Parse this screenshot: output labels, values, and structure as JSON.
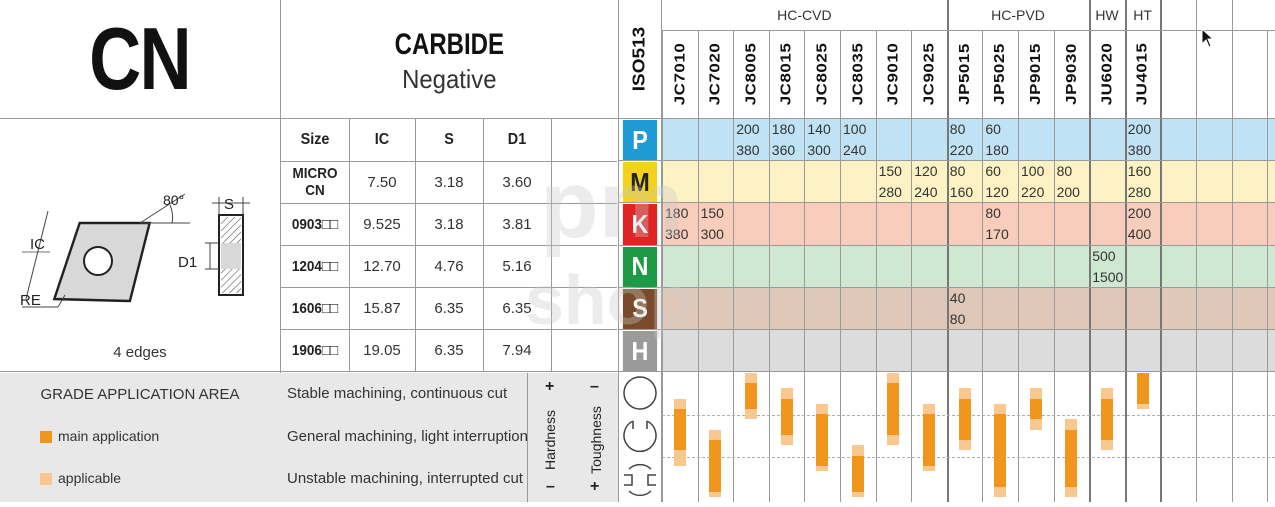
{
  "title": {
    "code": "CN",
    "material": "CARBIDE",
    "type": "Negative"
  },
  "insert": {
    "caption": "4 edges",
    "angle": "80°",
    "labels": {
      "ic": "IC",
      "re": "RE",
      "s": "S",
      "d1": "D1"
    }
  },
  "dim_table": {
    "headers": [
      "Size",
      "IC",
      "S",
      "D1"
    ],
    "rows": [
      {
        "size": "MICRO CN",
        "ic": "7.50",
        "s": "3.18",
        "d1": "3.60"
      },
      {
        "size": "0903□□",
        "ic": "9.525",
        "s": "3.18",
        "d1": "3.81"
      },
      {
        "size": "1204□□",
        "ic": "12.70",
        "s": "4.76",
        "d1": "5.16"
      },
      {
        "size": "1606□□",
        "ic": "15.87",
        "s": "6.35",
        "d1": "6.35"
      },
      {
        "size": "1906□□",
        "ic": "19.05",
        "s": "6.35",
        "d1": "7.94"
      }
    ]
  },
  "iso_label": "ISO513",
  "groups": [
    {
      "label": "HC-CVD"
    },
    {
      "label": "HC-PVD"
    },
    {
      "label": "HW"
    },
    {
      "label": "HT"
    }
  ],
  "grades": [
    "JC7010",
    "JC7020",
    "JC8005",
    "JC8015",
    "JC8025",
    "JC8035",
    "JC9010",
    "JC9025",
    "JP5015",
    "JP5025",
    "JP9015",
    "JP9030",
    "JU6020",
    "JU4015"
  ],
  "materials": [
    {
      "letter": "P",
      "badge": "#1e9ad6",
      "bg": "#bfe3f5"
    },
    {
      "letter": "M",
      "badge": "#f2d21c",
      "bg": "#fdf2c4",
      "text": "#222222"
    },
    {
      "letter": "K",
      "badge": "#e02424",
      "bg": "#f8cdbb"
    },
    {
      "letter": "N",
      "badge": "#1e9a46",
      "bg": "#cfe8d2"
    },
    {
      "letter": "S",
      "badge": "#7a4a2a",
      "bg": "#e0c8b8"
    },
    {
      "letter": "H",
      "badge": "#9a9a9a",
      "bg": "#dcdcdc"
    }
  ],
  "speeds": {
    "P": [
      [
        "",
        ""
      ],
      [
        "",
        ""
      ],
      [
        "200",
        "380"
      ],
      [
        "180",
        "360"
      ],
      [
        "140",
        "300"
      ],
      [
        "100",
        "240"
      ],
      [
        "",
        ""
      ],
      [
        "",
        ""
      ],
      [
        "80",
        "220"
      ],
      [
        "60",
        "180"
      ],
      [
        "",
        ""
      ],
      [
        "",
        ""
      ],
      [
        "",
        ""
      ],
      [
        "200",
        "380"
      ]
    ],
    "M": [
      [
        "",
        ""
      ],
      [
        "",
        ""
      ],
      [
        "",
        ""
      ],
      [
        "",
        ""
      ],
      [
        "",
        ""
      ],
      [
        "",
        ""
      ],
      [
        "150",
        "280"
      ],
      [
        "120",
        "240"
      ],
      [
        "80",
        "160"
      ],
      [
        "60",
        "120"
      ],
      [
        "100",
        "220"
      ],
      [
        "80",
        "200"
      ],
      [
        "",
        ""
      ],
      [
        "160",
        "280"
      ]
    ],
    "K": [
      [
        "180",
        "380"
      ],
      [
        "150",
        "300"
      ],
      [
        "",
        ""
      ],
      [
        "",
        ""
      ],
      [
        "",
        ""
      ],
      [
        "",
        ""
      ],
      [
        "",
        ""
      ],
      [
        "",
        ""
      ],
      [
        "",
        ""
      ],
      [
        "80",
        "170"
      ],
      [
        "",
        ""
      ],
      [
        "",
        ""
      ],
      [
        "",
        ""
      ],
      [
        "200",
        "400"
      ]
    ],
    "N": [
      [
        "",
        ""
      ],
      [
        "",
        ""
      ],
      [
        "",
        ""
      ],
      [
        "",
        ""
      ],
      [
        "",
        ""
      ],
      [
        "",
        ""
      ],
      [
        "",
        ""
      ],
      [
        "",
        ""
      ],
      [
        "",
        ""
      ],
      [
        "",
        ""
      ],
      [
        "",
        ""
      ],
      [
        "",
        ""
      ],
      [
        "500",
        "1500"
      ],
      [
        "",
        ""
      ]
    ],
    "S": [
      [
        "",
        ""
      ],
      [
        "",
        ""
      ],
      [
        "",
        ""
      ],
      [
        "",
        ""
      ],
      [
        "",
        ""
      ],
      [
        "",
        ""
      ],
      [
        "",
        ""
      ],
      [
        "",
        ""
      ],
      [
        "40",
        "80"
      ],
      [
        "",
        ""
      ],
      [
        "",
        ""
      ],
      [
        "",
        ""
      ],
      [
        "",
        ""
      ],
      [
        "",
        ""
      ]
    ],
    "H": [
      [
        "",
        ""
      ],
      [
        "",
        ""
      ],
      [
        "",
        ""
      ],
      [
        "",
        ""
      ],
      [
        "",
        ""
      ],
      [
        "",
        ""
      ],
      [
        "",
        ""
      ],
      [
        "",
        ""
      ],
      [
        "",
        ""
      ],
      [
        "",
        ""
      ],
      [
        "",
        ""
      ],
      [
        "",
        ""
      ],
      [
        "",
        ""
      ],
      [
        "",
        ""
      ]
    ]
  },
  "application": {
    "title": "GRADE APPLICATION AREA",
    "legend_main": "main application",
    "legend_applicable": "applicable",
    "rows": [
      "Stable machining, continuous cut",
      "General machining, light interruption",
      "Unstable machining, interrupted cut"
    ],
    "hardness": "Hardness",
    "toughness": "Toughness",
    "plus": "+",
    "minus": "–",
    "colors": {
      "main": "#f0961e",
      "applicable": "#f8c890"
    }
  },
  "bars": [
    {
      "app": [
        0.25,
        0.9
      ],
      "main": [
        0.35,
        0.75
      ]
    },
    {
      "app": [
        0.55,
        1.2
      ],
      "main": [
        0.65,
        1.15
      ]
    },
    {
      "app": [
        0.0,
        0.45
      ],
      "main": [
        0.1,
        0.35
      ]
    },
    {
      "app": [
        0.15,
        0.7
      ],
      "main": [
        0.25,
        0.6
      ]
    },
    {
      "app": [
        0.3,
        0.95
      ],
      "main": [
        0.4,
        0.9
      ]
    },
    {
      "app": [
        0.7,
        1.2
      ],
      "main": [
        0.8,
        1.15
      ]
    },
    {
      "app": [
        0.0,
        0.7
      ],
      "main": [
        0.1,
        0.6
      ]
    },
    {
      "app": [
        0.3,
        0.95
      ],
      "main": [
        0.4,
        0.9
      ]
    },
    {
      "app": [
        0.15,
        0.75
      ],
      "main": [
        0.25,
        0.65
      ]
    },
    {
      "app": [
        0.3,
        1.2
      ],
      "main": [
        0.4,
        1.1
      ]
    },
    {
      "app": [
        0.15,
        0.55
      ],
      "main": [
        0.25,
        0.45
      ]
    },
    {
      "app": [
        0.45,
        1.2
      ],
      "main": [
        0.55,
        1.1
      ]
    },
    {
      "app": [
        0.15,
        0.75
      ],
      "main": [
        0.25,
        0.65
      ]
    },
    {
      "app": [
        0.0,
        0.35
      ],
      "main": [
        0.0,
        0.3
      ]
    }
  ]
}
